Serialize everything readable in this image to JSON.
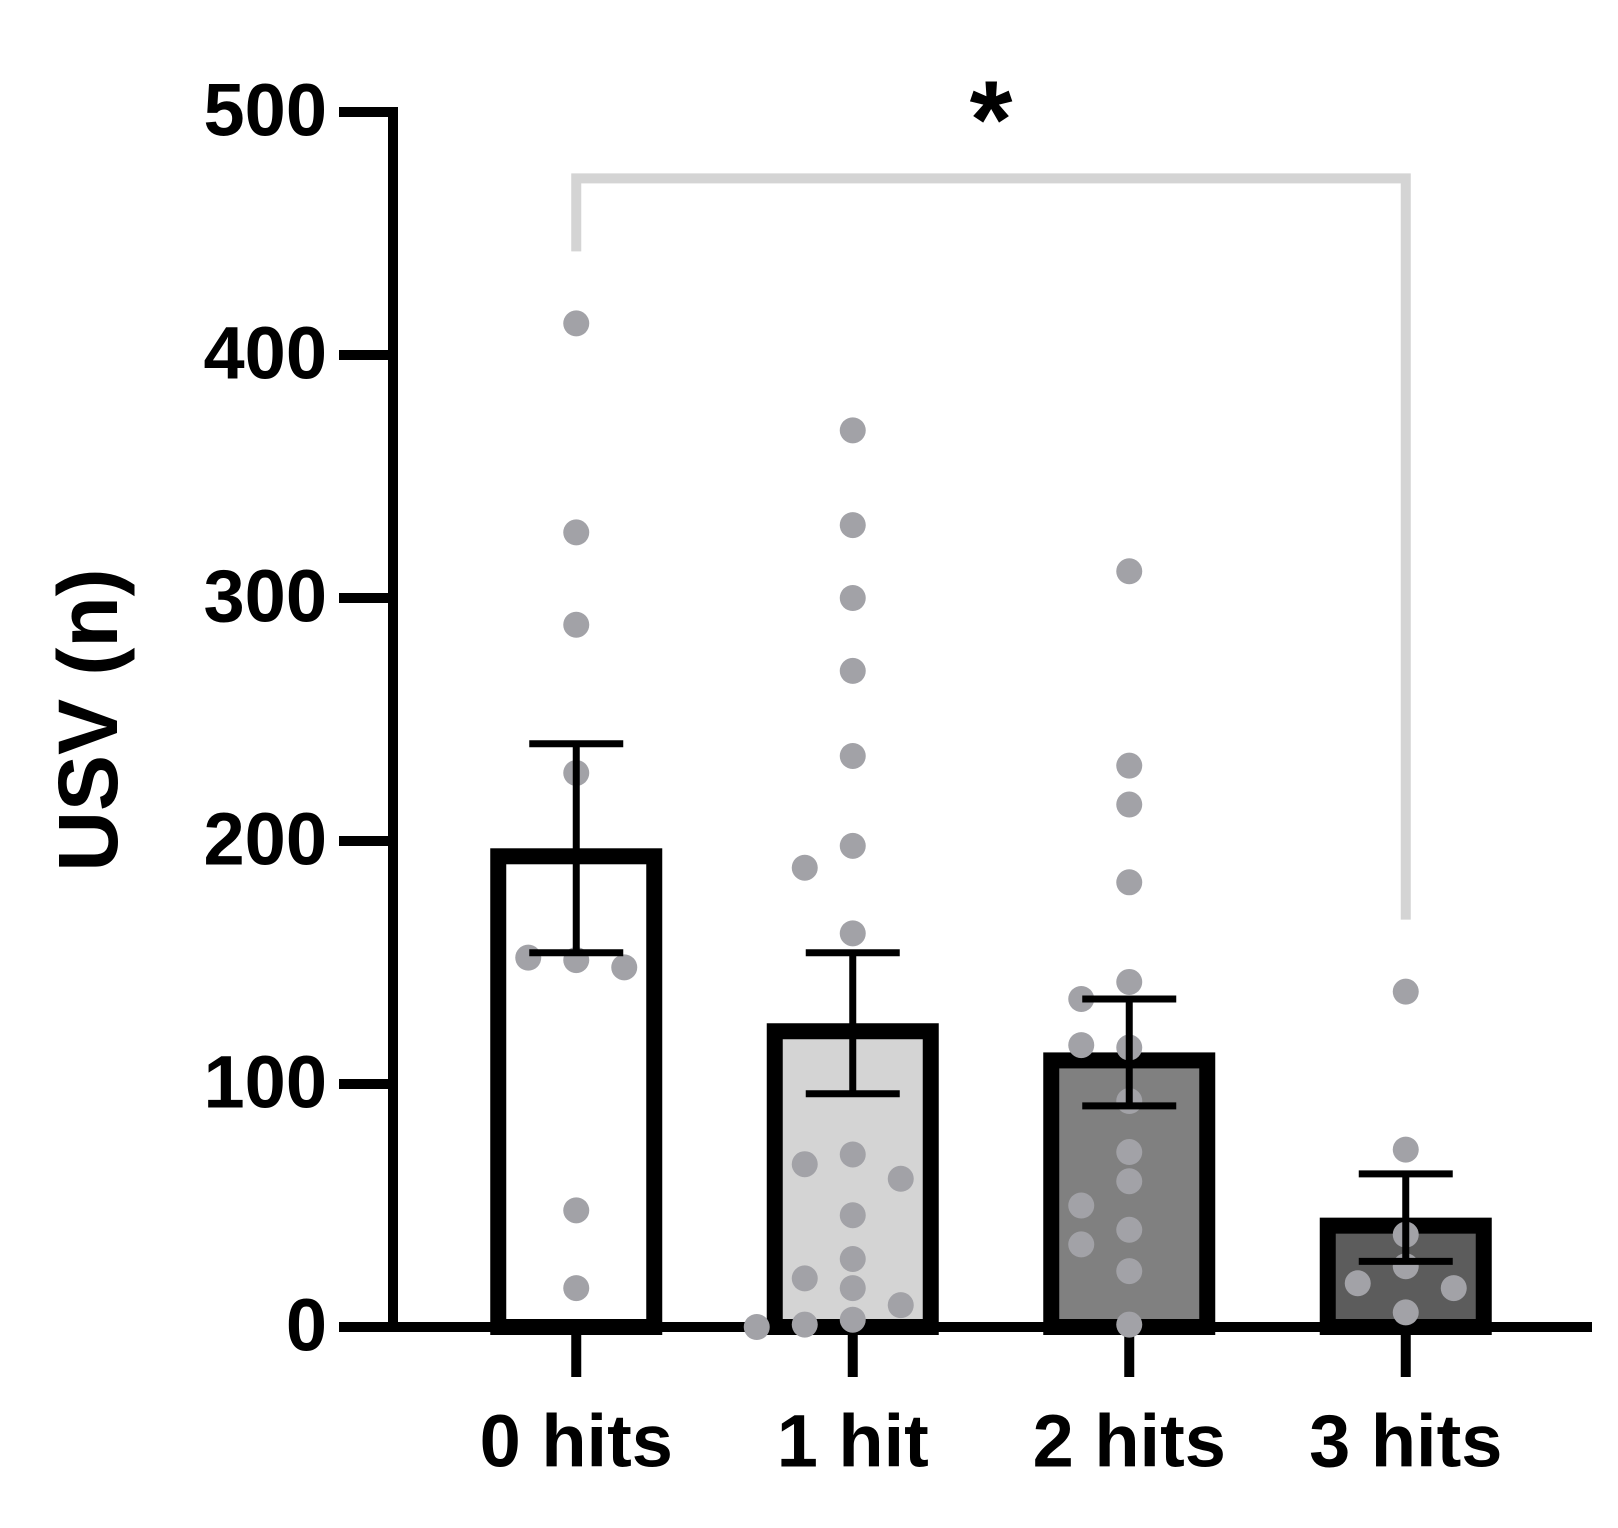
{
  "chart_data": {
    "type": "bar",
    "y_label": "USV (n)",
    "categories": [
      "0 hits",
      "1 hit",
      "2 hits",
      "3 hits"
    ],
    "values": [
      197,
      125,
      113,
      45
    ],
    "errors": [
      43,
      29,
      22,
      18
    ],
    "colors": [
      "#ffffff",
      "#d4d4d4",
      "#808080",
      "#5c5c5c"
    ],
    "edge_color": "#000000",
    "points": [
      [
        413,
        327,
        289,
        228,
        151,
        152,
        148,
        48,
        16
      ],
      [
        369,
        330,
        300,
        270,
        235,
        198,
        189,
        162,
        71,
        67,
        61,
        46,
        28,
        20,
        16,
        9,
        3,
        1,
        0
      ],
      [
        311,
        231,
        215,
        183,
        142,
        135,
        115,
        116,
        93,
        72,
        60,
        50,
        40,
        34,
        23,
        1
      ],
      [
        138,
        73,
        38,
        25,
        18,
        16,
        6
      ]
    ],
    "point_color": "#a2a2a7",
    "ylim": [
      0,
      500
    ],
    "yticks": [
      0,
      100,
      200,
      300,
      400,
      500
    ],
    "significance": {
      "from": 0,
      "to": 3,
      "label": "*",
      "color": "#d4d4d4"
    }
  }
}
